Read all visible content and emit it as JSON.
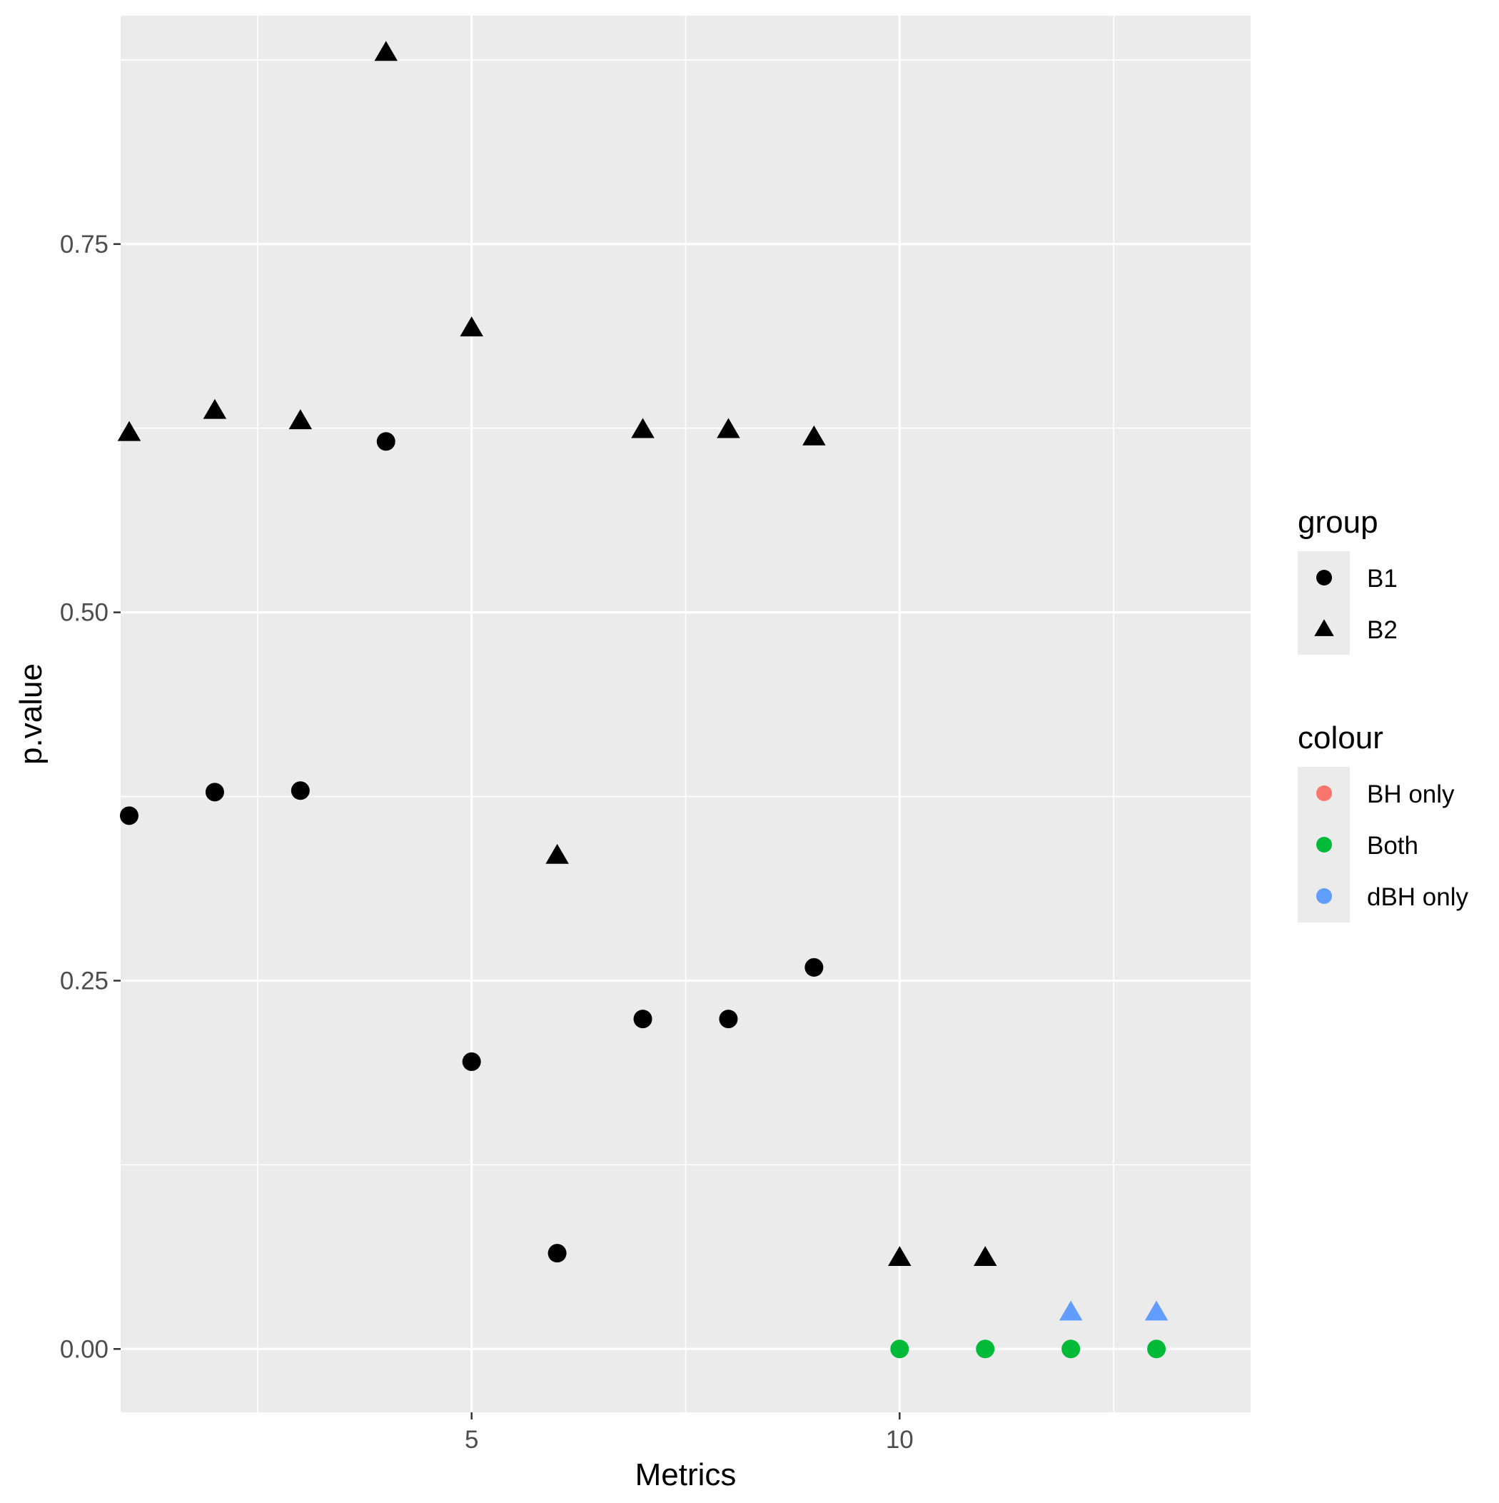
{
  "chart_data": {
    "type": "scatter",
    "title": "",
    "xlabel": "Metrics",
    "ylabel": "p.value",
    "xlim": [
      0.9,
      14.1
    ],
    "ylim": [
      -0.043,
      0.905
    ],
    "x_ticks": [
      5,
      10
    ],
    "x_tick_labels": [
      "5",
      "10"
    ],
    "y_ticks": [
      0,
      0.25,
      0.5,
      0.75
    ],
    "y_tick_labels": [
      "0.00",
      "0.25",
      "0.50",
      "0.75"
    ],
    "grid": true,
    "legend_position": "right",
    "legend": {
      "group": {
        "title": "group",
        "entries": [
          {
            "label": "B1",
            "shape": "circle"
          },
          {
            "label": "B2",
            "shape": "triangle"
          }
        ]
      },
      "colour": {
        "title": "colour",
        "entries": [
          {
            "label": "BH only",
            "color": "#F8766D"
          },
          {
            "label": "Both",
            "color": "#00BA38"
          },
          {
            "label": "dBH only",
            "color": "#619CFF"
          }
        ]
      }
    },
    "series": [
      {
        "name": "B1",
        "shape": "circle",
        "points": [
          {
            "x": 1,
            "y": 0.362
          },
          {
            "x": 2,
            "y": 0.378
          },
          {
            "x": 3,
            "y": 0.379
          },
          {
            "x": 4,
            "y": 0.616
          },
          {
            "x": 5,
            "y": 0.195
          },
          {
            "x": 6,
            "y": 0.065
          },
          {
            "x": 7,
            "y": 0.224
          },
          {
            "x": 8,
            "y": 0.224
          },
          {
            "x": 9,
            "y": 0.259
          },
          {
            "x": 10,
            "y": 0.0,
            "colour": "Both"
          },
          {
            "x": 11,
            "y": 0.0,
            "colour": "Both"
          },
          {
            "x": 12,
            "y": 0.0,
            "colour": "Both"
          },
          {
            "x": 13,
            "y": 0.0,
            "colour": "Both"
          }
        ]
      },
      {
        "name": "B2",
        "shape": "triangle",
        "points": [
          {
            "x": 1,
            "y": 0.622
          },
          {
            "x": 2,
            "y": 0.637
          },
          {
            "x": 3,
            "y": 0.63
          },
          {
            "x": 4,
            "y": 0.88
          },
          {
            "x": 5,
            "y": 0.693
          },
          {
            "x": 6,
            "y": 0.335
          },
          {
            "x": 7,
            "y": 0.624
          },
          {
            "x": 8,
            "y": 0.624
          },
          {
            "x": 9,
            "y": 0.619
          },
          {
            "x": 10,
            "y": 0.062
          },
          {
            "x": 11,
            "y": 0.062
          },
          {
            "x": 12,
            "y": 0.025,
            "colour": "dBH only"
          },
          {
            "x": 13,
            "y": 0.025,
            "colour": "dBH only"
          }
        ]
      }
    ],
    "colors": {
      "panel": "#EBEBEB",
      "grid": "#FFFFFF",
      "default_point": "#000000",
      "axis_text": "#4D4D4D"
    }
  }
}
